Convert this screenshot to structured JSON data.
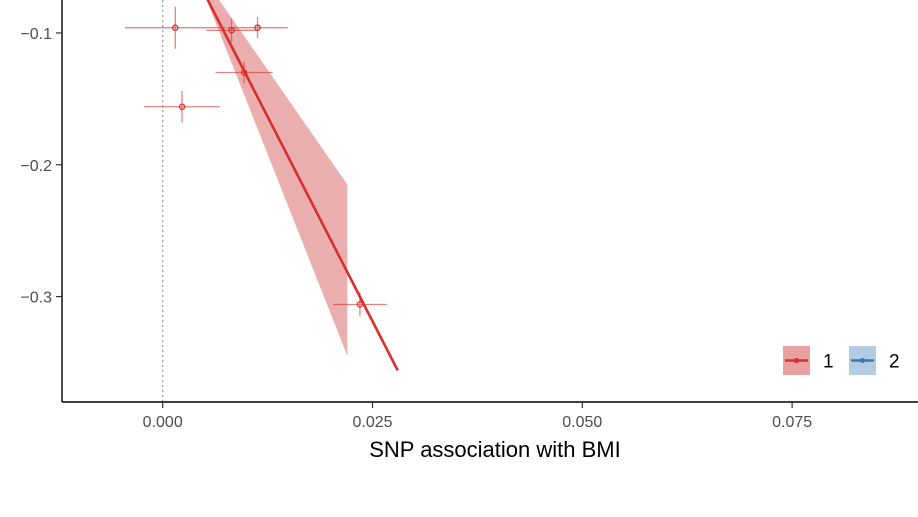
{
  "chart_data": {
    "type": "scatter",
    "title": "",
    "xlabel": "SNP association with BMI",
    "ylabel": "",
    "xlim": [
      -0.012,
      0.09
    ],
    "ylim": [
      -0.38,
      -0.075
    ],
    "x_ticks": [
      0.0,
      0.025,
      0.05,
      0.075
    ],
    "x_tick_labels": [
      "0.000",
      "0.025",
      "0.050",
      "0.075"
    ],
    "y_ticks": [
      -0.1,
      -0.2,
      -0.3
    ],
    "y_tick_labels": [
      "−0.1",
      "−0.2",
      "−0.3"
    ],
    "vertical_reference_x": 0.0,
    "grid": false,
    "legend_position": "bottom-right",
    "series": [
      {
        "name": "1",
        "color": "#d7302b",
        "band_color": "#e8a0a1",
        "points": [
          {
            "x": 0.0015,
            "y": -0.096,
            "xerr": 0.006,
            "yerr": 0.016
          },
          {
            "x": 0.0082,
            "y": -0.098,
            "xerr": 0.003,
            "yerr": 0.009
          },
          {
            "x": 0.0113,
            "y": -0.096,
            "xerr": 0.0036,
            "yerr": 0.008
          },
          {
            "x": 0.0097,
            "y": -0.13,
            "xerr": 0.0034,
            "yerr": 0.008
          },
          {
            "x": 0.0023,
            "y": -0.156,
            "xerr": 0.0045,
            "yerr": 0.012
          },
          {
            "x": 0.0235,
            "y": -0.306,
            "xerr": 0.0032,
            "yerr": 0.009
          }
        ],
        "fit_line": {
          "x": [
            0.004,
            0.028
          ],
          "y": [
            -0.058,
            -0.356
          ]
        },
        "confidence_band": [
          {
            "x": 0.004,
            "lower": -0.055,
            "upper": -0.05
          },
          {
            "x": 0.022,
            "lower": -0.345,
            "upper": -0.215
          }
        ]
      },
      {
        "name": "2",
        "color": "#3d7ab8",
        "band_color": "#b3cce3",
        "points": []
      }
    ]
  }
}
